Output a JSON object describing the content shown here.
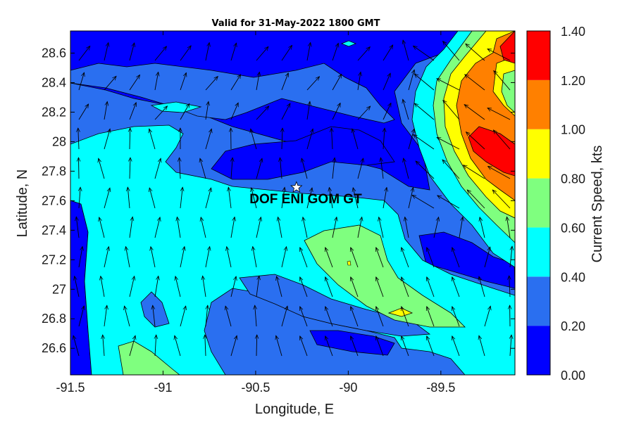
{
  "title": "Valid for 31-May-2022 1800 GMT",
  "x_axis": {
    "label": "Longitude, E",
    "ticks": [
      "-91.5",
      "-91",
      "-90.5",
      "-90",
      "-89.5"
    ]
  },
  "y_axis": {
    "label": "Latitude, N",
    "ticks": [
      "28.6",
      "28.4",
      "28.2",
      "28",
      "27.8",
      "27.6",
      "27.4",
      "27.2",
      "27",
      "26.8",
      "26.6"
    ]
  },
  "site": {
    "name": "DOF ENI GOM GT",
    "marker_icon": "star-icon",
    "lon": -90.28,
    "lat": 27.69
  },
  "colorbar": {
    "label": "Current Speed, kts",
    "ticks": [
      "1.40",
      "1.20",
      "1.00",
      "0.80",
      "0.60",
      "0.40",
      "0.20",
      "0.00"
    ],
    "colors": [
      "#0000ff",
      "#2a6ff0",
      "#00ffff",
      "#7fff7f",
      "#ffff00",
      "#ff8000",
      "#ff0000"
    ],
    "levels": [
      0.0,
      0.2,
      0.4,
      0.6,
      0.8,
      1.0,
      1.2,
      1.4
    ]
  },
  "chart_data": {
    "type": "heatmap",
    "title": "Valid for 31-May-2022 1800 GMT",
    "xlabel": "Longitude, E",
    "ylabel": "Latitude, N",
    "xlim": [
      -91.5,
      -89.1
    ],
    "ylim": [
      26.42,
      28.75
    ],
    "color_label": "Current Speed, kts",
    "color_range": [
      0.0,
      1.4
    ],
    "overlay": "current direction arrows",
    "dominant_current_direction": "north",
    "max_speed_region": "northeast corner, 1.2-1.4 kts"
  }
}
